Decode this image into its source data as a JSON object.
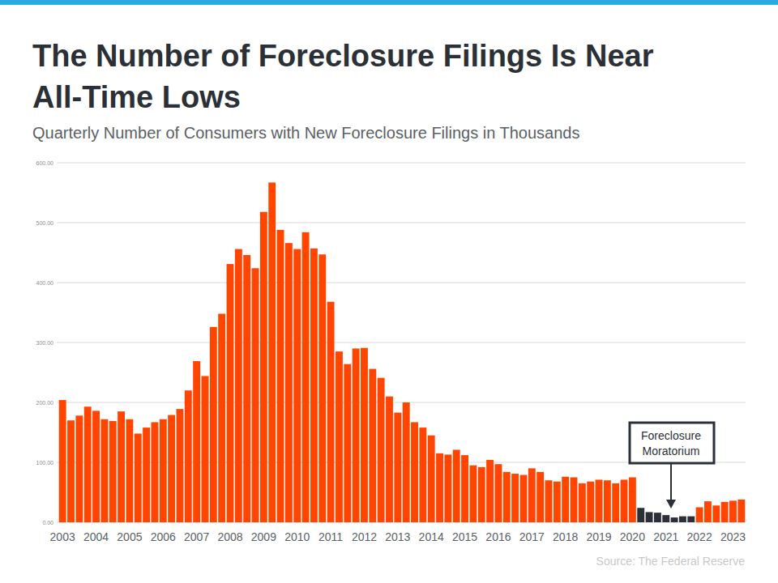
{
  "chart_data": {
    "type": "bar",
    "title": "The Number of Foreclosure Filings Is Near All-Time Lows",
    "subtitle": "Quarterly Number of Consumers with New Foreclosure Filings in Thousands",
    "source": "Source: The Federal Reserve",
    "annotation": "Foreclosure Moratorium",
    "categories": [
      "2003",
      null,
      null,
      null,
      "2004",
      null,
      null,
      null,
      "2005",
      null,
      null,
      null,
      "2006",
      null,
      null,
      null,
      "2007",
      null,
      null,
      null,
      "2008",
      null,
      null,
      null,
      "2009",
      null,
      null,
      null,
      "2010",
      null,
      null,
      null,
      "2011",
      null,
      null,
      null,
      "2012",
      null,
      null,
      null,
      "2013",
      null,
      null,
      null,
      "2014",
      null,
      null,
      null,
      "2015",
      null,
      null,
      null,
      "2016",
      null,
      null,
      null,
      "2017",
      null,
      null,
      null,
      "2018",
      null,
      null,
      null,
      "2019",
      null,
      null,
      null,
      "2020",
      null,
      null,
      null,
      "2021",
      null,
      null,
      null,
      "2022",
      null,
      null,
      null,
      "2023",
      null
    ],
    "values": [
      204,
      170,
      178,
      193,
      186,
      172,
      169,
      185,
      172,
      148,
      158,
      167,
      172,
      179,
      189,
      220,
      269,
      244,
      326,
      348,
      431,
      456,
      446,
      424,
      518,
      567,
      488,
      466,
      456,
      484,
      457,
      447,
      368,
      285,
      264,
      290,
      291,
      256,
      241,
      210,
      183,
      200,
      167,
      158,
      145,
      115,
      113,
      121,
      112,
      95,
      92,
      104,
      97,
      84,
      81,
      79,
      90,
      84,
      70,
      68,
      76,
      75,
      65,
      68,
      71,
      70,
      65,
      71,
      75,
      24,
      17,
      16,
      12,
      8,
      10,
      10,
      25,
      35,
      28,
      34,
      36,
      38
    ],
    "colors": [
      "#ff4500",
      "#ff4500",
      "#ff4500",
      "#ff4500",
      "#ff4500",
      "#ff4500",
      "#ff4500",
      "#ff4500",
      "#ff4500",
      "#ff4500",
      "#ff4500",
      "#ff4500",
      "#ff4500",
      "#ff4500",
      "#ff4500",
      "#ff4500",
      "#ff4500",
      "#ff4500",
      "#ff4500",
      "#ff4500",
      "#ff4500",
      "#ff4500",
      "#ff4500",
      "#ff4500",
      "#ff4500",
      "#ff4500",
      "#ff4500",
      "#ff4500",
      "#ff4500",
      "#ff4500",
      "#ff4500",
      "#ff4500",
      "#ff4500",
      "#ff4500",
      "#ff4500",
      "#ff4500",
      "#ff4500",
      "#ff4500",
      "#ff4500",
      "#ff4500",
      "#ff4500",
      "#ff4500",
      "#ff4500",
      "#ff4500",
      "#ff4500",
      "#ff4500",
      "#ff4500",
      "#ff4500",
      "#ff4500",
      "#ff4500",
      "#ff4500",
      "#ff4500",
      "#ff4500",
      "#ff4500",
      "#ff4500",
      "#ff4500",
      "#ff4500",
      "#ff4500",
      "#ff4500",
      "#ff4500",
      "#ff4500",
      "#ff4500",
      "#ff4500",
      "#ff4500",
      "#ff4500",
      "#ff4500",
      "#ff4500",
      "#ff4500",
      "#ff4500",
      "#2b3038",
      "#2b3038",
      "#2b3038",
      "#2b3038",
      "#2b3038",
      "#2b3038",
      "#2b3038",
      "#ff4500",
      "#ff4500",
      "#ff4500",
      "#ff4500",
      "#ff4500",
      "#ff4500"
    ],
    "ylim": [
      0,
      600
    ],
    "yticks": [
      {
        "value": 0,
        "label": "0.00"
      },
      {
        "value": 100,
        "label": "100.00"
      },
      {
        "value": 200,
        "label": "200.00"
      },
      {
        "value": 300,
        "label": "300.00"
      },
      {
        "value": 400,
        "label": "400.00"
      },
      {
        "value": 500,
        "label": "500.00"
      },
      {
        "value": 600,
        "label": "600.00"
      }
    ],
    "grid": true
  }
}
